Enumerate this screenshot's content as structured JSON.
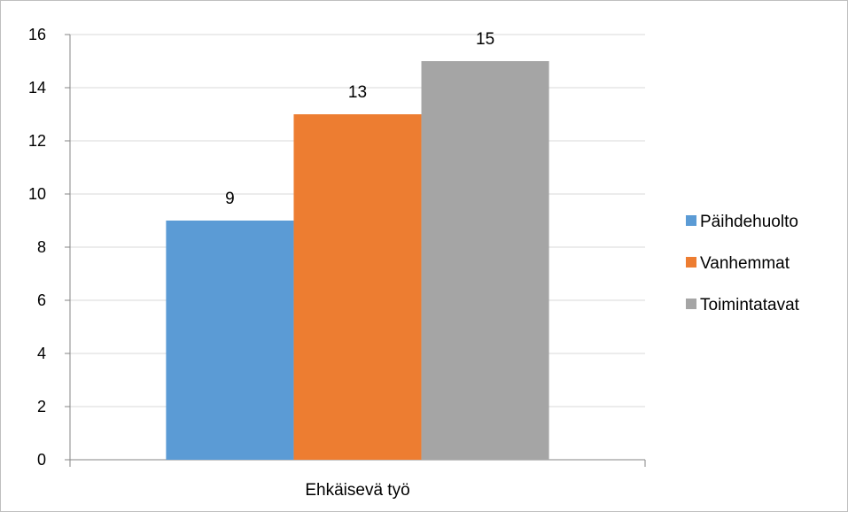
{
  "chart_data": {
    "type": "bar",
    "title": "",
    "xlabel": "",
    "ylabel": "",
    "categories": [
      "Ehkäisevä työ"
    ],
    "series": [
      {
        "name": "Päihdehuolto",
        "values": [
          9
        ],
        "color": "#5b9bd5"
      },
      {
        "name": "Vanhemmat",
        "values": [
          13
        ],
        "color": "#ed7d31"
      },
      {
        "name": "Toimintatavat",
        "values": [
          15
        ],
        "color": "#a5a5a5"
      }
    ],
    "ylim": [
      0,
      16
    ],
    "yticks": [
      "0",
      "2",
      "4",
      "6",
      "8",
      "10",
      "12",
      "14",
      "16"
    ],
    "grid": true,
    "data_labels": true,
    "legend_position": "right"
  }
}
